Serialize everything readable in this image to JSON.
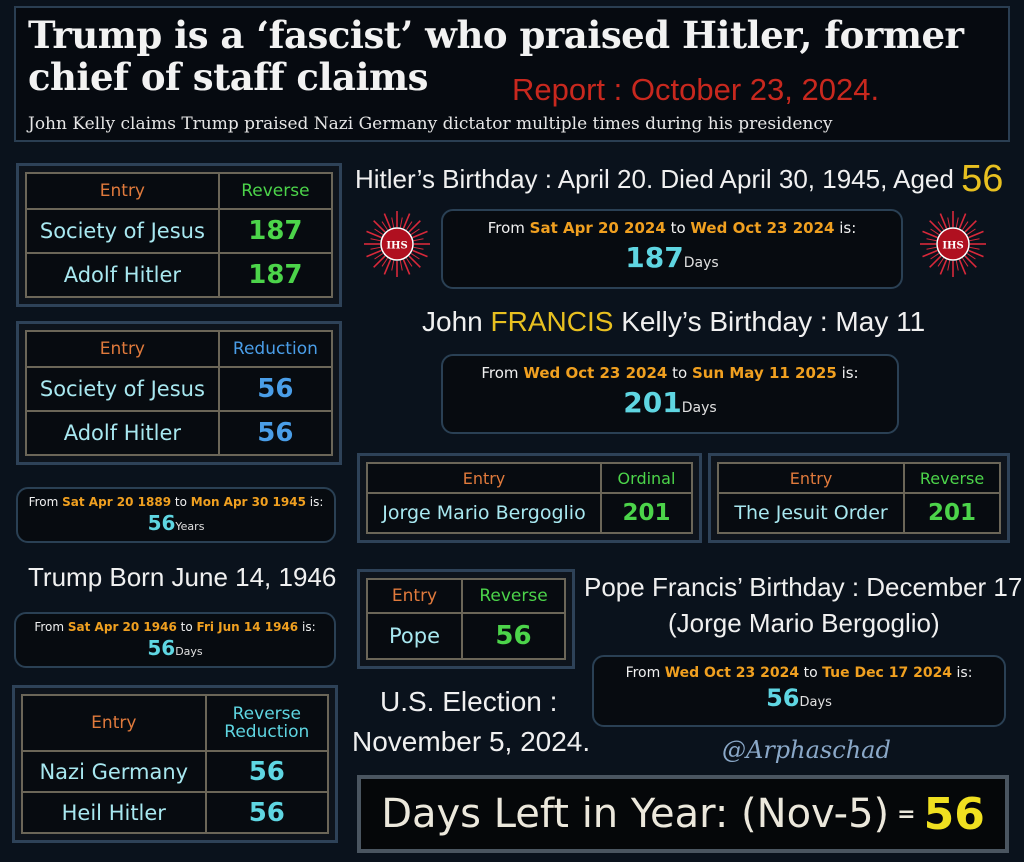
{
  "header": {
    "headline": "Trump is a ‘fascist’ who praised Hitler, former chief of staff claims",
    "report": "Report : October 23, 2024.",
    "subhead": "John Kelly claims Trump praised Nazi Germany dictator multiple times during his presidency"
  },
  "tables": {
    "jesuits_reverse": {
      "col_entry": "Entry",
      "col_cipher": "Reverse",
      "rows": [
        {
          "entry": "Society of Jesus",
          "value": "187"
        },
        {
          "entry": "Adolf Hitler",
          "value": "187"
        }
      ]
    },
    "jesuits_reduction": {
      "col_entry": "Entry",
      "col_cipher": "Reduction",
      "rows": [
        {
          "entry": "Society of Jesus",
          "value": "56"
        },
        {
          "entry": "Adolf Hitler",
          "value": "56"
        }
      ]
    },
    "bergoglio_ordinal": {
      "col_entry": "Entry",
      "col_cipher": "Ordinal",
      "rows": [
        {
          "entry": "Jorge Mario Bergoglio",
          "value": "201"
        }
      ]
    },
    "jesuit_order_reverse": {
      "col_entry": "Entry",
      "col_cipher": "Reverse",
      "rows": [
        {
          "entry": "The Jesuit Order",
          "value": "201"
        }
      ]
    },
    "pope_reverse": {
      "col_entry": "Entry",
      "col_cipher": "Reverse",
      "rows": [
        {
          "entry": "Pope",
          "value": "56"
        }
      ]
    },
    "nazi_reverse_reduction": {
      "col_entry": "Entry",
      "col_cipher_1": "Reverse",
      "col_cipher_2": "Reduction",
      "rows": [
        {
          "entry": "Nazi Germany",
          "value": "56"
        },
        {
          "entry": "Heil Hitler",
          "value": "56"
        }
      ]
    }
  },
  "date_calcs": {
    "hitler_lifespan": {
      "prefix": "From",
      "from": "Sat Apr 20 1889",
      "mid": "to",
      "to": "Mon Apr 30 1945",
      "suffix": "is:",
      "result": "56",
      "unit": "Years"
    },
    "trump_born": {
      "prefix": "From",
      "from": "Sat Apr 20 1946",
      "mid": "to",
      "to": "Fri Jun 14 1946",
      "suffix": "is:",
      "result": "56",
      "unit": "Days"
    },
    "hitler_birthday_to_report": {
      "prefix": "From",
      "from": "Sat Apr 20 2024",
      "mid": "to",
      "to": "Wed Oct 23 2024",
      "suffix": "is:",
      "result": "187",
      "unit": "Days"
    },
    "report_to_kelly_birthday": {
      "prefix": "From",
      "from": "Wed Oct 23 2024",
      "mid": "to",
      "to": "Sun May 11 2025",
      "suffix": "is:",
      "result": "201",
      "unit": "Days"
    },
    "report_to_pope_birthday": {
      "prefix": "From",
      "from": "Wed Oct 23 2024",
      "mid": "to",
      "to": "Tue Dec 17 2024",
      "suffix": "is:",
      "result": "56",
      "unit": "Days"
    }
  },
  "labels": {
    "hitler_birthday": "Hitler’s Birthday : April 20. Died April 30, 1945, Aged",
    "hitler_age": "56",
    "kelly_prefix": "John",
    "kelly_middle": "FRANCIS",
    "kelly_suffix": "Kelly’s Birthday : May 11",
    "trump_born": "Trump Born June 14, 1946",
    "pope_birthday_1": "Pope Francis’ Birthday : December 17.",
    "pope_birthday_2": "(Jorge Mario Bergoglio)",
    "election_1": "U.S. Election :",
    "election_2": "November 5, 2024.",
    "signature": "@Arphaschad",
    "days_left": "Days Left in Year: (Nov-5)",
    "days_left_eq": "=",
    "days_left_value": "56"
  },
  "emblem": {
    "text": "IHS",
    "icon": "ihs-jesuit-seal-icon",
    "color_rays": "#d8283a",
    "color_center": "#b01020"
  },
  "colors": {
    "background": "#0a121c",
    "report_red": "#c8281e",
    "gold": "#e8c020",
    "orange_date": "#f0a020",
    "cyan_value": "#5fd6e2",
    "green_value": "#4cd44a",
    "blue_value": "#4a9ee8",
    "entry_orange": "#e07a3c"
  }
}
